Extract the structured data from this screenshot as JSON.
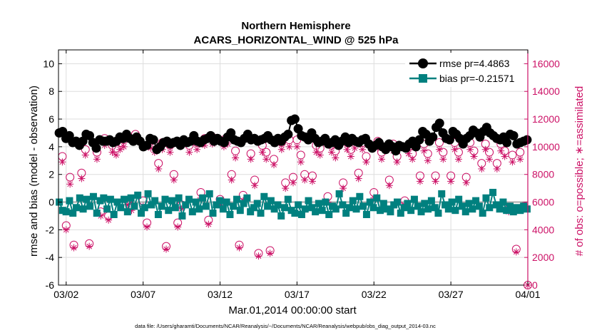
{
  "chart_data": {
    "type": "line",
    "title": "Northern Hemisphere",
    "subtitle": "ACARS_HORIZONTAL_WIND @ 525 hPa",
    "xlabel": "Mar.01,2014 00:00:00 start",
    "ylabel_left": "rmse and bias (model - observation)",
    "ylabel_right": "# of obs: o=possible; ∗=assimilated",
    "footnote": "data file: /Users/gharamti/Documents/NCAR/Reanalysis/~/Documents/NCAR/Reanalysis/webpub/obs_diag_output_2014-03.nc",
    "x_range_days": [
      1.5,
      32.0
    ],
    "y_left_range": [
      -6,
      11
    ],
    "y_right_range": [
      0,
      17000
    ],
    "x_ticks": [
      {
        "day": 2,
        "label": "03/02"
      },
      {
        "day": 7,
        "label": "03/07"
      },
      {
        "day": 12,
        "label": "03/12"
      },
      {
        "day": 17,
        "label": "03/17"
      },
      {
        "day": 22,
        "label": "03/22"
      },
      {
        "day": 27,
        "label": "03/27"
      },
      {
        "day": 32,
        "label": "04/01"
      }
    ],
    "y_left_ticks": [
      "-6",
      "-4",
      "-2",
      "0",
      "2",
      "4",
      "6",
      "8",
      "10"
    ],
    "y_right_ticks": [
      "0",
      "2000",
      "4000",
      "6000",
      "8000",
      "10000",
      "12000",
      "14000",
      "16000"
    ],
    "grid": true,
    "legend_position": "top-right",
    "colors": {
      "rmse": "#000000",
      "bias": "#00807f",
      "obs": "#cc1166",
      "zero_line": "#aaaaaa",
      "grid": "#dddddd"
    },
    "series": [
      {
        "name": "rmse pr=4.4863",
        "axis": "left",
        "values": [
          5.0,
          5.1,
          4.6,
          4.8,
          4.3,
          4.4,
          4.1,
          4.4,
          4.9,
          4.8,
          4.3,
          3.9,
          4.5,
          4.4,
          4.4,
          4.5,
          4.3,
          4.4,
          4.7,
          4.6,
          4.9,
          4.6,
          4.4,
          4.7,
          4.4,
          4.0,
          4.1,
          4.6,
          4.5,
          3.8,
          4.0,
          4.3,
          4.4,
          4.2,
          4.3,
          4.4,
          4.1,
          4.5,
          4.3,
          4.4,
          4.8,
          4.4,
          4.3,
          4.5,
          4.6,
          4.8,
          4.4,
          4.6,
          4.4,
          4.3,
          4.7,
          5.0,
          4.5,
          4.4,
          4.3,
          4.6,
          4.9,
          4.5,
          4.6,
          4.4,
          4.5,
          4.6,
          4.8,
          4.5,
          4.3,
          4.6,
          4.4,
          4.7,
          4.9,
          5.9,
          6.0,
          5.3,
          4.8,
          4.7,
          4.5,
          5.0,
          4.6,
          4.3,
          4.4,
          4.6,
          4.2,
          4.3,
          4.5,
          4.1,
          4.4,
          4.7,
          4.3,
          4.6,
          4.4,
          4.3,
          4.5,
          4.6,
          4.2,
          3.9,
          4.1,
          4.3,
          4.0,
          3.8,
          4.2,
          4.0,
          3.7,
          4.1,
          4.0,
          3.9,
          4.2,
          4.4,
          4.0,
          4.5,
          5.1,
          4.9,
          4.4,
          4.7,
          5.4,
          5.7,
          5.0,
          4.6,
          4.5,
          5.1,
          4.9,
          4.6,
          4.2,
          4.6,
          4.8,
          5.2,
          5.0,
          4.7,
          5.1,
          5.4,
          5.0,
          4.8,
          4.6,
          4.5,
          4.7,
          4.3,
          4.9,
          4.8,
          4.2,
          4.3,
          4.4,
          4.5
        ]
      },
      {
        "name": "bias pr=-0.21571",
        "axis": "left",
        "values": [
          0.0,
          -0.6,
          -0.7,
          0.1,
          -0.8,
          -0.4,
          0.3,
          -0.5,
          0.2,
          -0.3,
          0.4,
          -0.8,
          0.1,
          0.3,
          -0.5,
          0.2,
          -0.9,
          0.0,
          -0.4,
          0.2,
          -0.7,
          0.3,
          -0.3,
          0.5,
          -0.8,
          -0.4,
          0.6,
          -0.2,
          0.1,
          -0.9,
          -0.3,
          0.2,
          -0.6,
          0.1,
          -0.4,
          0.3,
          -1.0,
          -0.2,
          0.2,
          -0.7,
          0.0,
          -0.5,
          0.3,
          -0.3,
          0.6,
          -0.8,
          -0.2,
          0.1,
          -0.5,
          0.0,
          -0.9,
          -0.3,
          0.2,
          -0.6,
          -0.1,
          0.3,
          -0.7,
          -0.4,
          -0.1,
          -0.8,
          0.4,
          -0.3,
          0.1,
          -0.5,
          -0.2,
          -1.0,
          -0.4,
          0.2,
          -0.6,
          -0.8,
          -0.2,
          -0.9,
          -0.5,
          0.1,
          -0.4,
          -0.7,
          -0.1,
          -0.6,
          0.0,
          -0.9,
          -0.3,
          -0.5,
          0.6,
          -0.2,
          -0.8,
          -0.4,
          0.1,
          -0.5,
          0.4,
          -0.3,
          -0.9,
          0.0,
          -0.4,
          0.3,
          -0.6,
          -0.1,
          -0.5,
          -0.7,
          -0.2,
          0.0,
          -0.8,
          -0.4,
          -0.1,
          -0.6,
          0.2,
          -0.3,
          -0.7,
          -0.1,
          -0.5,
          0.1,
          -0.4,
          -0.8,
          0.6,
          -0.2,
          -0.5,
          0.0,
          -0.6,
          0.2,
          -0.3,
          -0.7,
          -0.1,
          -0.5,
          0.1,
          -0.3,
          -0.8,
          0.3,
          -0.4,
          0.7,
          -0.2,
          -0.5,
          0.0,
          -0.6,
          -0.3,
          -0.7,
          -0.4,
          -0.6,
          -0.3,
          -0.5
        ]
      },
      {
        "name": "obs possible",
        "axis": "right",
        "marker": "circle",
        "x_days": [
          1.75,
          2.0,
          2.25,
          2.5,
          3.0,
          3.25,
          3.5,
          4.0,
          4.25,
          4.5,
          4.75,
          5.0,
          5.25,
          5.5,
          5.75,
          6.0,
          6.25,
          6.5,
          7.0,
          7.25,
          7.5,
          7.75,
          8.0,
          8.25,
          8.5,
          8.75,
          9.0,
          9.25,
          9.5,
          10.0,
          10.5,
          10.75,
          11.0,
          11.25,
          11.5,
          12.0,
          12.25,
          12.5,
          12.75,
          13.0,
          13.25,
          13.5,
          14.0,
          14.25,
          14.5,
          14.75,
          15.0,
          15.25,
          15.5,
          16.0,
          16.25,
          16.5,
          16.75,
          17.0,
          17.25,
          17.5,
          18.0,
          18.25,
          18.5,
          19.0,
          19.25,
          19.5,
          20.0,
          20.25,
          20.5,
          20.75,
          21.0,
          21.25,
          21.5,
          22.0,
          22.25,
          22.5,
          23.0,
          23.25,
          23.5,
          24.0,
          24.25,
          24.5,
          25.0,
          25.25,
          25.5,
          26.0,
          26.25,
          26.5,
          27.0,
          27.25,
          27.5,
          28.0,
          28.25,
          28.5,
          29.0,
          29.25,
          29.5,
          30.0,
          30.25,
          30.5,
          30.75,
          31.0,
          31.25,
          31.5,
          31.75,
          32.0
        ],
        "values": [
          9300,
          4300,
          7800,
          2900,
          8100,
          9800,
          3000,
          9600,
          5300,
          10600,
          5000,
          10100,
          9900,
          10300,
          10500,
          6100,
          5700,
          10900,
          6100,
          4500,
          10400,
          10100,
          8800,
          10300,
          2800,
          10100,
          8000,
          4500,
          5800,
          10100,
          10300,
          6700,
          10600,
          4700,
          10700,
          6200,
          10500,
          10700,
          8000,
          9700,
          2900,
          6500,
          9500,
          7600,
          2300,
          10100,
          9600,
          2500,
          9100,
          10300,
          7400,
          10500,
          7800,
          10500,
          9400,
          8000,
          7900,
          10100,
          9900,
          6400,
          10100,
          9700,
          7400,
          10300,
          9800,
          10400,
          8100,
          10300,
          9300,
          6700,
          10400,
          9600,
          7600,
          10200,
          9300,
          6100,
          10000,
          9500,
          7900,
          10200,
          9500,
          7900,
          10300,
          9600,
          7900,
          10300,
          9600,
          7800,
          10300,
          9700,
          8800,
          10200,
          9600,
          8800,
          10200,
          9700,
          5500,
          9400,
          2600,
          9600,
          5700,
          0
        ]
      },
      {
        "name": "obs assimilated",
        "axis": "right",
        "marker": "asterisk",
        "x_days": [
          1.75,
          2.0,
          2.25,
          2.5,
          3.0,
          3.25,
          3.5,
          4.0,
          4.25,
          4.5,
          4.75,
          5.0,
          5.25,
          5.5,
          5.75,
          6.0,
          6.25,
          6.5,
          7.0,
          7.25,
          7.5,
          7.75,
          8.0,
          8.25,
          8.5,
          8.75,
          9.0,
          9.25,
          9.5,
          10.0,
          10.5,
          10.75,
          11.0,
          11.25,
          11.5,
          12.0,
          12.25,
          12.5,
          12.75,
          13.0,
          13.25,
          13.5,
          14.0,
          14.25,
          14.5,
          14.75,
          15.0,
          15.25,
          15.5,
          16.0,
          16.25,
          16.5,
          16.75,
          17.0,
          17.25,
          17.5,
          18.0,
          18.25,
          18.5,
          19.0,
          19.25,
          19.5,
          20.0,
          20.25,
          20.5,
          20.75,
          21.0,
          21.25,
          21.5,
          22.0,
          22.25,
          22.5,
          23.0,
          23.25,
          23.5,
          24.0,
          24.25,
          24.5,
          25.0,
          25.25,
          25.5,
          26.0,
          26.25,
          26.5,
          27.0,
          27.25,
          27.5,
          28.0,
          28.25,
          28.5,
          29.0,
          29.25,
          29.5,
          30.0,
          30.25,
          30.5,
          30.75,
          31.0,
          31.25,
          31.5,
          31.75,
          32.0
        ],
        "values": [
          8900,
          4000,
          7300,
          2700,
          7700,
          9400,
          2800,
          9100,
          5000,
          10100,
          4700,
          9600,
          9400,
          9800,
          10000,
          5800,
          5400,
          10400,
          5700,
          4200,
          9900,
          9600,
          8400,
          9800,
          2600,
          9600,
          7600,
          4200,
          5500,
          9600,
          9800,
          6300,
          10100,
          4400,
          10200,
          5800,
          10000,
          10200,
          7600,
          9200,
          2700,
          6100,
          9100,
          7200,
          2100,
          9600,
          9100,
          2300,
          8700,
          9800,
          7000,
          10000,
          7400,
          10000,
          8900,
          7600,
          7500,
          9600,
          9400,
          6000,
          9600,
          9200,
          7000,
          9800,
          9300,
          9900,
          7700,
          9800,
          8900,
          6300,
          9900,
          9100,
          7200,
          9700,
          8900,
          5800,
          9500,
          9100,
          7500,
          9700,
          9000,
          7500,
          9800,
          9100,
          7500,
          9800,
          9100,
          7400,
          9800,
          9300,
          8400,
          9800,
          9100,
          8400,
          9700,
          9300,
          5300,
          8900,
          2400,
          9100,
          5500,
          0
        ]
      }
    ]
  }
}
